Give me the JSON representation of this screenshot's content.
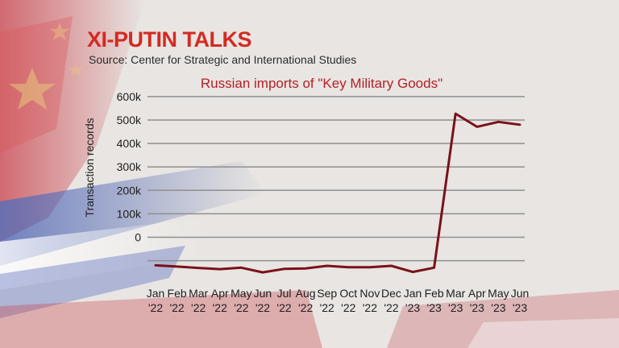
{
  "headline": "XI-PUTIN TALKS",
  "source": "Source: Center for Strategic and International Studies",
  "colors": {
    "headline": "#d42a21",
    "line": "#7a1118",
    "title": "#b41f25",
    "grid": "#8f8f8f"
  },
  "chart_data": {
    "type": "line",
    "title": "Russian imports of \"Key Military Goods\"",
    "ylabel": "Transaction records",
    "xlabel": "",
    "y_tick_labels": [
      "600k",
      "500k",
      "400k",
      "300k",
      "200k",
      "100k",
      "0"
    ],
    "grid": true,
    "x_months": [
      "Jan",
      "Feb",
      "Mar",
      "Apr",
      "May",
      "Jun",
      "Jul",
      "Aug",
      "Sep",
      "Oct",
      "Nov",
      "Dec",
      "Jan",
      "Feb",
      "Mar",
      "Apr",
      "May",
      "Jun"
    ],
    "x_years": [
      "'22",
      "'22",
      "'22",
      "'22",
      "'22",
      "'22",
      "'22",
      "'22",
      "'22",
      "'22",
      "'22",
      "'22",
      "'23",
      "'23",
      "'23",
      "'23",
      "'23",
      "'23"
    ],
    "series": [
      {
        "values": [
          -120000,
          -125000,
          -131000,
          -136000,
          -130000,
          -150000,
          -135000,
          -133000,
          -122000,
          -128000,
          -128000,
          -122000,
          -148000,
          -130000,
          527000,
          471000,
          492000,
          480000
        ]
      }
    ]
  }
}
